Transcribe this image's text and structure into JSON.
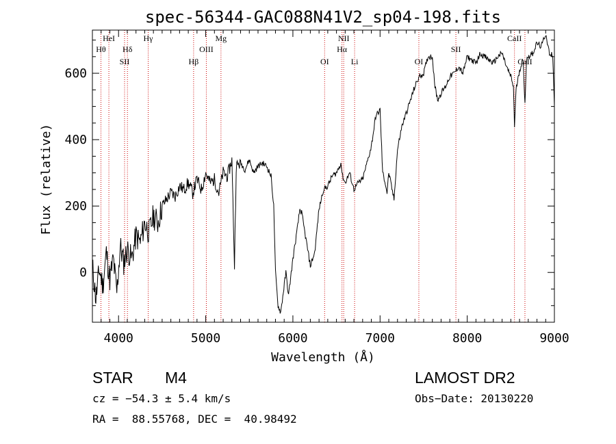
{
  "chart_data": {
    "type": "line",
    "title": "spec-56344-GAC088N41V2_sp04-198.fits",
    "xlabel": "Wavelength (Å)",
    "ylabel": "Flux (relative)",
    "xlim": [
      3700,
      9000
    ],
    "ylim": [
      -150,
      730
    ],
    "xticks": [
      "4000",
      "5000",
      "6000",
      "7000",
      "8000",
      "9000"
    ],
    "yticks": [
      "0",
      "200",
      "400",
      "600"
    ],
    "grid": false,
    "series": [
      {
        "x": [
          3700,
          3740,
          3780,
          3820,
          3860,
          3900,
          3940,
          3980,
          4020,
          4060,
          4100,
          4150,
          4200,
          4250,
          4300,
          4350,
          4400,
          4450,
          4500,
          4550,
          4600,
          4650,
          4700,
          4750,
          4800,
          4850,
          4900,
          4950,
          5000,
          5050,
          5100,
          5150,
          5200,
          5250,
          5300,
          5330,
          5350,
          5400,
          5450,
          5500,
          5550,
          5600,
          5650,
          5700,
          5750,
          5780,
          5800,
          5830,
          5860,
          5890,
          5920,
          5950,
          6000,
          6050,
          6080,
          6100,
          6150,
          6200,
          6250,
          6300,
          6350,
          6400,
          6450,
          6500,
          6550,
          6570,
          6600,
          6650,
          6700,
          6750,
          6800,
          6850,
          6900,
          6950,
          7000,
          7030,
          7060,
          7080,
          7100,
          7130,
          7160,
          7200,
          7250,
          7300,
          7350,
          7400,
          7450,
          7500,
          7550,
          7600,
          7630,
          7660,
          7700,
          7750,
          7800,
          7850,
          7900,
          7950,
          8000,
          8050,
          8100,
          8150,
          8200,
          8250,
          8300,
          8350,
          8400,
          8450,
          8500,
          8530,
          8542,
          8560,
          8600,
          8640,
          8662,
          8680,
          8700,
          8750,
          8800,
          8850,
          8900,
          8950,
          8980,
          9000
        ],
        "values": [
          20,
          -80,
          10,
          -40,
          60,
          -20,
          40,
          -60,
          80,
          30,
          70,
          40,
          110,
          90,
          150,
          120,
          170,
          150,
          200,
          220,
          240,
          230,
          260,
          250,
          270,
          240,
          280,
          250,
          300,
          270,
          280,
          240,
          300,
          290,
          340,
          20,
          320,
          330,
          310,
          340,
          300,
          320,
          330,
          320,
          290,
          200,
          0,
          -100,
          -120,
          -60,
          0,
          -70,
          40,
          130,
          190,
          180,
          100,
          20,
          60,
          190,
          250,
          260,
          290,
          300,
          330,
          290,
          270,
          300,
          250,
          270,
          280,
          330,
          380,
          470,
          490,
          300,
          270,
          240,
          300,
          260,
          220,
          370,
          440,
          480,
          520,
          560,
          590,
          600,
          650,
          650,
          560,
          520,
          540,
          560,
          590,
          600,
          620,
          600,
          650,
          640,
          630,
          660,
          650,
          640,
          630,
          650,
          660,
          620,
          590,
          560,
          440,
          550,
          610,
          640,
          510,
          640,
          650,
          660,
          690,
          680,
          720,
          650,
          660,
          500
        ]
      }
    ],
    "lines": [
      {
        "label": "Hθ",
        "x": 3798,
        "row": 2
      },
      {
        "label": "HeI",
        "x": 3889,
        "row": 1
      },
      {
        "label": "Hδ",
        "x": 4102,
        "row": 2
      },
      {
        "label": "SII",
        "x": 4069,
        "row": 3
      },
      {
        "label": "Hγ",
        "x": 4340,
        "row": 1
      },
      {
        "label": "Hβ",
        "x": 4861,
        "row": 3
      },
      {
        "label": "OIII",
        "x": 5007,
        "row": 2
      },
      {
        "label": "Mg",
        "x": 5175,
        "row": 1
      },
      {
        "label": "OI",
        "x": 6364,
        "row": 3
      },
      {
        "label": "NII",
        "x": 6583,
        "row": 1
      },
      {
        "label": "Hα",
        "x": 6563,
        "row": 2
      },
      {
        "label": "Li",
        "x": 6708,
        "row": 3
      },
      {
        "label": "OI",
        "x": 7445,
        "row": 3
      },
      {
        "label": "SII",
        "x": 7870,
        "row": 2
      },
      {
        "label": "CaII",
        "x": 8542,
        "row": 1
      },
      {
        "label": "CaII",
        "x": 8662,
        "row": 3
      }
    ]
  },
  "info": {
    "class_label": "STAR",
    "subclass": "M4",
    "cz": "cz = −54.3 ± 5.4 km/s",
    "coords": "RA =  88.55768, DEC =  40.98492",
    "survey": "LAMOST DR2",
    "obs_date": "Obs−Date: 20130220"
  },
  "colors": {
    "axis": "#000000",
    "spectrum": "#000000",
    "line_marker": "#cc0000"
  }
}
